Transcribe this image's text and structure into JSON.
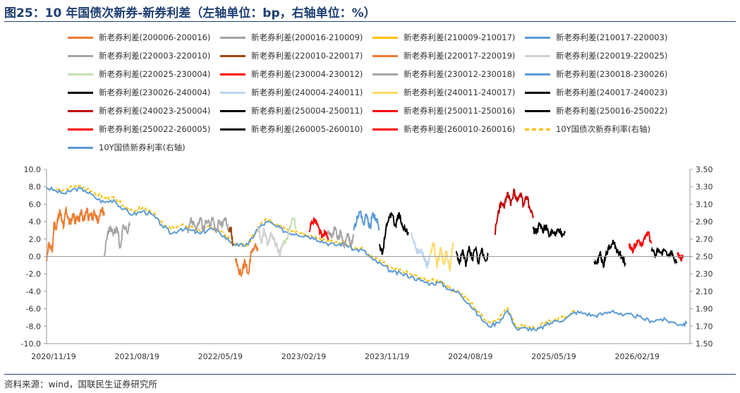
{
  "title": "图25：10 年国债次新券-新券利差（左轴单位：bp，右轴单位：%）",
  "source": "资料来源：wind，国联民生证券研究所",
  "chart_data": {
    "type": "line",
    "x_ticks": [
      "2020/11/19",
      "2021/08/19",
      "2022/05/19",
      "2023/02/19",
      "2023/11/19",
      "2024/08/19",
      "2025/05/19",
      "2026/02/19"
    ],
    "y_left": {
      "ticks": [
        "10.0",
        "8.0",
        "6.0",
        "4.0",
        "2.0",
        "0.0",
        "-2.0",
        "-4.0",
        "-6.0",
        "-8.0",
        "-10.0"
      ],
      "ylim": [
        -10,
        10
      ]
    },
    "y_right": {
      "ticks": [
        "3.50",
        "3.30",
        "3.10",
        "2.90",
        "2.70",
        "2.50",
        "2.30",
        "2.10",
        "1.90",
        "1.70",
        "1.50"
      ],
      "ylim": [
        1.5,
        3.5
      ]
    },
    "legend": [
      {
        "name": "新老券利差(200006-200016)",
        "color": "#ed7d31",
        "dash": false
      },
      {
        "name": "新老券利差(200016-210009)",
        "color": "#a5a5a5",
        "dash": false
      },
      {
        "name": "新老券利差(210009-210017)",
        "color": "#ffc000",
        "dash": false
      },
      {
        "name": "新老券利差(210017-220003)",
        "color": "#5b9bd5",
        "dash": false
      },
      {
        "name": "新老券利差(220003-220010)",
        "color": "#a5a5a5",
        "dash": false
      },
      {
        "name": "新老券利差(220010-220017)",
        "color": "#9e480e",
        "dash": false
      },
      {
        "name": "新老券利差(220017-220019)",
        "color": "#ed7d31",
        "dash": false
      },
      {
        "name": "新老券利差(220019-220025)",
        "color": "#d0d0d0",
        "dash": false
      },
      {
        "name": "新老券利差(220025-230004)",
        "color": "#c5e0b4",
        "dash": false
      },
      {
        "name": "新老券利差(230004-230012)",
        "color": "#ff0000",
        "dash": false
      },
      {
        "name": "新老券利差(230012-230018)",
        "color": "#a5a5a5",
        "dash": false
      },
      {
        "name": "新老券利差(230018-230026)",
        "color": "#5b9bd5",
        "dash": false
      },
      {
        "name": "新老券利差(230026-240004)",
        "color": "#000000",
        "dash": false
      },
      {
        "name": "新老券利差(240004-240011)",
        "color": "#bdd7ee",
        "dash": false
      },
      {
        "name": "新老券利差(240011-240017)",
        "color": "#ffd966",
        "dash": false
      },
      {
        "name": "新老券利差(240017-240023)",
        "color": "#000000",
        "dash": false
      },
      {
        "name": "新老券利差(240023-250004)",
        "color": "#c00000",
        "dash": false
      },
      {
        "name": "新老券利差(250004-250011)",
        "color": "#000000",
        "dash": false
      },
      {
        "name": "新老券利差(250011-250016)",
        "color": "#ff0000",
        "dash": false
      },
      {
        "name": "新老券利差(250016-250022)",
        "color": "#000000",
        "dash": false
      },
      {
        "name": "新老券利差(250022-260005)",
        "color": "#ff0000",
        "dash": false
      },
      {
        "name": "新老券利差(260005-260010)",
        "color": "#000000",
        "dash": false
      },
      {
        "name": "新老券利差(260010-260016)",
        "color": "#ff0000",
        "dash": false
      },
      {
        "name": "10Y国债次新券利率(右轴)",
        "color": "#ffc000",
        "dash": true
      },
      {
        "name": "10Y国债新券利率(右轴)",
        "color": "#5b9bd5",
        "dash": false
      }
    ],
    "spread_series": [
      {
        "color": "#ed7d31",
        "x": [
          0.0,
          0.03,
          0.06,
          0.09,
          0.12,
          0.15,
          0.18,
          0.21,
          0.24,
          0.27,
          0.3,
          0.33,
          0.36,
          0.39,
          0.42,
          0.45,
          0.48,
          0.51,
          0.54,
          0.57,
          0.6,
          0.63,
          0.66,
          0.69,
          0.72,
          0.75,
          0.78,
          0.81,
          0.84,
          0.87,
          0.9
        ],
        "y": [
          -0.6,
          1.5,
          1.0,
          0.6,
          4.0,
          3.0,
          4.5,
          5.2,
          4.0,
          3.4,
          5.5,
          4.6,
          3.8,
          4.2,
          5.0,
          3.9,
          4.6,
          4.1,
          5.3,
          4.0,
          4.6,
          5.6,
          4.2,
          4.9,
          4.4,
          5.1,
          4.6,
          3.9,
          5.0,
          5.5,
          4.7
        ]
      },
      {
        "color": "#a5a5a5",
        "x": [
          0.9,
          0.95,
          1.0,
          1.05,
          1.1,
          1.15,
          1.2,
          1.25,
          1.3
        ],
        "y": [
          0.0,
          2.5,
          3.4,
          2.6,
          3.3,
          1.0,
          3.6,
          2.9,
          3.5
        ]
      },
      {
        "color": "#a5a5a5",
        "x": [
          2.2,
          2.25,
          2.3,
          2.35,
          2.4,
          2.45,
          2.5,
          2.55,
          2.6,
          2.65,
          2.7,
          2.75,
          2.8,
          2.85
        ],
        "y": [
          2.9,
          4.2,
          3.8,
          3.2,
          4.4,
          3.0,
          4.2,
          3.4,
          4.5,
          2.7,
          4.2,
          3.5,
          4.4,
          2.8
        ]
      },
      {
        "color": "#9e480e",
        "x": [
          2.85,
          2.88,
          2.91
        ],
        "y": [
          2.8,
          3.3,
          1.2
        ]
      },
      {
        "color": "#ed7d31",
        "x": [
          2.95,
          3.0,
          3.05,
          3.1,
          3.15,
          3.2,
          3.25,
          3.3
        ],
        "y": [
          -0.2,
          -1.6,
          -2.0,
          -0.5,
          -2.0,
          0.6,
          1.2,
          1.0
        ]
      },
      {
        "color": "#d0d0d0",
        "x": [
          3.3,
          3.35,
          3.4,
          3.45,
          3.5,
          3.55,
          3.6,
          3.65,
          3.7
        ],
        "y": [
          3.5,
          1.6,
          3.2,
          1.3,
          2.8,
          2.0,
          1.2,
          0.2,
          1.8
        ]
      },
      {
        "color": "#c5e0b4",
        "x": [
          3.7,
          3.75,
          3.8,
          3.85,
          3.9
        ],
        "y": [
          1.6,
          2.0,
          3.4,
          4.4,
          3.4
        ]
      },
      {
        "color": "#ff0000",
        "x": [
          4.1,
          4.15,
          4.2,
          4.25,
          4.3,
          4.35,
          4.4
        ],
        "y": [
          2.8,
          3.9,
          4.3,
          3.3,
          2.1,
          2.9,
          1.9
        ]
      },
      {
        "color": "#a5a5a5",
        "x": [
          4.4,
          4.45,
          4.5,
          4.55,
          4.6,
          4.65,
          4.7,
          4.75,
          4.8
        ],
        "y": [
          3.0,
          2.2,
          3.2,
          1.9,
          2.8,
          1.1,
          2.7,
          1.4,
          2.3
        ]
      },
      {
        "color": "#5b9bd5",
        "x": [
          4.8,
          4.85,
          4.9,
          4.95,
          5.0,
          5.05,
          5.1,
          5.15,
          5.2
        ],
        "y": [
          3.0,
          4.6,
          5.1,
          3.8,
          4.8,
          3.2,
          5.0,
          4.4,
          3.0
        ]
      },
      {
        "color": "#000000",
        "x": [
          5.2,
          5.25,
          5.3,
          5.35,
          5.4,
          5.45,
          5.5,
          5.55,
          5.6,
          5.65
        ],
        "y": [
          1.4,
          0.4,
          3.1,
          4.6,
          4.8,
          3.5,
          4.9,
          3.8,
          3.0,
          2.8
        ]
      },
      {
        "color": "#bdd7ee",
        "x": [
          5.7,
          5.75,
          5.8,
          5.85,
          5.9,
          5.95,
          6.0
        ],
        "y": [
          2.8,
          1.6,
          0.3,
          0.9,
          -0.4,
          -1.2,
          0.2
        ]
      },
      {
        "color": "#ffd966",
        "x": [
          6.0,
          6.05,
          6.1,
          6.15,
          6.2,
          6.25,
          6.3,
          6.35
        ],
        "y": [
          0.2,
          1.6,
          -1.3,
          1.1,
          -0.8,
          0.6,
          -1.6,
          1.6
        ]
      },
      {
        "color": "#000000",
        "x": [
          6.4,
          6.45,
          6.5,
          6.55,
          6.6,
          6.65,
          6.7,
          6.75,
          6.8,
          6.85,
          6.9
        ],
        "y": [
          0.6,
          -0.8,
          0.8,
          -1.2,
          1.2,
          -0.4,
          0.8,
          -0.9,
          0.9,
          -0.4,
          0.2
        ]
      },
      {
        "color": "#c00000",
        "x": [
          7.0,
          7.05,
          7.1,
          7.15,
          7.2,
          7.25,
          7.3,
          7.35,
          7.4,
          7.45,
          7.5,
          7.55,
          7.6
        ],
        "y": [
          2.5,
          4.8,
          6.2,
          5.5,
          7.4,
          5.8,
          7.7,
          6.4,
          7.3,
          5.8,
          6.9,
          5.5,
          4.4
        ]
      },
      {
        "color": "#000000",
        "x": [
          7.6,
          7.65,
          7.7,
          7.75,
          7.8,
          7.85,
          7.9,
          7.95,
          8.0,
          8.05,
          8.1
        ],
        "y": [
          3.2,
          2.7,
          3.8,
          2.9,
          3.5,
          2.3,
          3.0,
          2.4,
          3.1,
          2.2,
          2.7
        ]
      },
      {
        "color": "#000000",
        "x": [
          8.55,
          8.6,
          8.65,
          8.7,
          8.75,
          8.8,
          8.85,
          8.9,
          8.95,
          9.0,
          9.05
        ],
        "y": [
          -0.6,
          -0.9,
          0.6,
          -1.2,
          0.4,
          1.2,
          1.9,
          0.9,
          0.3,
          -0.2,
          -0.8
        ]
      },
      {
        "color": "#ff0000",
        "x": [
          9.1,
          9.15,
          9.2,
          9.25,
          9.3,
          9.35,
          9.4,
          9.45
        ],
        "y": [
          1.5,
          0.8,
          1.3,
          1.9,
          1.2,
          2.1,
          2.7,
          1.5
        ]
      },
      {
        "color": "#000000",
        "x": [
          9.45,
          9.5,
          9.55,
          9.6,
          9.65,
          9.7,
          9.75,
          9.8,
          9.85
        ],
        "y": [
          0.6,
          0.2,
          0.8,
          0.4,
          0.7,
          0.1,
          0.5,
          -0.2,
          -0.6
        ]
      },
      {
        "color": "#ff0000",
        "x": [
          9.85,
          9.9,
          9.95
        ],
        "y": [
          0.3,
          -0.2,
          0.1
        ]
      }
    ],
    "yield_new": {
      "color": "#5b9bd5",
      "x": [
        0.0,
        0.15,
        0.3,
        0.45,
        0.6,
        0.75,
        0.9,
        1.05,
        1.2,
        1.35,
        1.5,
        1.65,
        1.8,
        1.95,
        2.1,
        2.25,
        2.4,
        2.55,
        2.7,
        2.85,
        3.0,
        3.15,
        3.3,
        3.45,
        3.6,
        3.75,
        3.9,
        4.05,
        4.2,
        4.35,
        4.5,
        4.65,
        4.8,
        4.95,
        5.1,
        5.25,
        5.4,
        5.55,
        5.7,
        5.85,
        6.0,
        6.15,
        6.3,
        6.45,
        6.6,
        6.75,
        6.9,
        7.05,
        7.2,
        7.35,
        7.5,
        7.65,
        7.8,
        7.95,
        8.1,
        8.25,
        8.4,
        8.55,
        8.7,
        8.85,
        9.0,
        9.15,
        9.3,
        9.45,
        9.6,
        9.75,
        9.9,
        10.0
      ],
      "y": [
        3.29,
        3.25,
        3.22,
        3.28,
        3.26,
        3.18,
        3.12,
        3.15,
        3.04,
        2.98,
        3.02,
        2.98,
        2.86,
        2.76,
        2.82,
        2.8,
        2.76,
        2.82,
        2.78,
        2.68,
        2.62,
        2.64,
        2.82,
        2.9,
        2.84,
        2.78,
        2.76,
        2.74,
        2.71,
        2.66,
        2.63,
        2.65,
        2.58,
        2.57,
        2.46,
        2.4,
        2.32,
        2.3,
        2.27,
        2.22,
        2.19,
        2.2,
        2.12,
        2.08,
        1.96,
        1.82,
        1.7,
        1.74,
        1.88,
        1.66,
        1.68,
        1.65,
        1.71,
        1.76,
        1.78,
        1.86,
        1.85,
        1.82,
        1.84,
        1.88,
        1.82,
        1.83,
        1.79,
        1.76,
        1.78,
        1.75,
        1.72,
        1.73
      ]
    },
    "yield_sub": {
      "color": "#ffc000",
      "x": [
        0.15,
        0.3,
        0.45,
        0.6,
        0.75,
        0.9,
        1.05,
        1.2,
        1.35,
        1.5,
        1.65,
        1.8,
        1.95,
        2.1,
        2.25,
        2.4,
        2.55,
        2.7,
        2.85,
        3.0,
        3.15,
        3.3,
        3.45,
        3.6,
        3.75,
        3.9,
        4.05,
        4.2,
        4.35,
        4.5,
        4.65,
        4.8,
        4.95,
        5.1,
        5.25,
        5.4,
        5.55,
        5.7,
        5.85,
        6.0,
        6.15,
        6.3,
        6.45,
        6.6,
        6.75,
        6.9,
        7.05,
        7.2,
        7.35,
        7.5,
        7.65,
        7.8,
        7.95,
        8.1,
        8.25
      ],
      "y": [
        3.27,
        3.27,
        3.31,
        3.29,
        3.23,
        3.17,
        3.18,
        3.08,
        3.02,
        3.06,
        3.01,
        2.9,
        2.81,
        2.86,
        2.84,
        2.79,
        2.85,
        2.81,
        2.7,
        2.62,
        2.63,
        2.84,
        2.93,
        2.87,
        2.81,
        2.79,
        2.76,
        2.73,
        2.68,
        2.66,
        2.67,
        2.6,
        2.58,
        2.48,
        2.43,
        2.36,
        2.33,
        2.29,
        2.25,
        2.22,
        2.22,
        2.14,
        2.09,
        1.99,
        1.86,
        1.75,
        1.78,
        1.91,
        1.69,
        1.71,
        1.67,
        1.74,
        1.78,
        1.8,
        1.88
      ]
    }
  }
}
